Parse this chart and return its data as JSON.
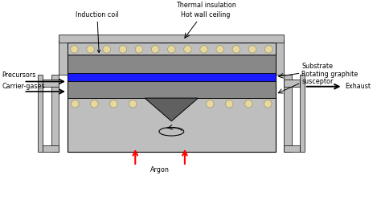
{
  "bg_color": "#ffffff",
  "gray_light": "#bebebe",
  "gray_mid": "#888888",
  "gray_dark": "#606060",
  "blue": "#1a1aff",
  "red": "#ff0000",
  "circle_fill": "#e8d8a0",
  "figsize": [
    4.74,
    2.49
  ],
  "dpi": 100,
  "xlim": [
    0,
    10
  ],
  "ylim": [
    0,
    5.2
  ]
}
